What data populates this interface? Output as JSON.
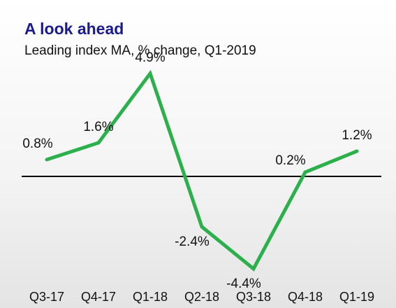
{
  "chart_data": {
    "type": "line",
    "title": "A look ahead",
    "subtitle": "Leading index MA, % change, Q1-2019",
    "categories": [
      "Q3-17",
      "Q4-17",
      "Q1-18",
      "Q2-18",
      "Q3-18",
      "Q4-18",
      "Q1-19"
    ],
    "values": [
      0.8,
      1.6,
      4.9,
      -2.4,
      -4.4,
      0.2,
      1.2
    ],
    "data_labels": [
      "0.8%",
      "1.6%",
      "4.9%",
      "-2.4%",
      "-4.4%",
      "0.2%",
      "1.2%"
    ],
    "xlabel": "",
    "ylabel": "",
    "ylim": [
      -5.5,
      6.5
    ],
    "grid": false,
    "legend": "none",
    "line_color": "#2bb04c",
    "zero_line_color": "#000000"
  }
}
